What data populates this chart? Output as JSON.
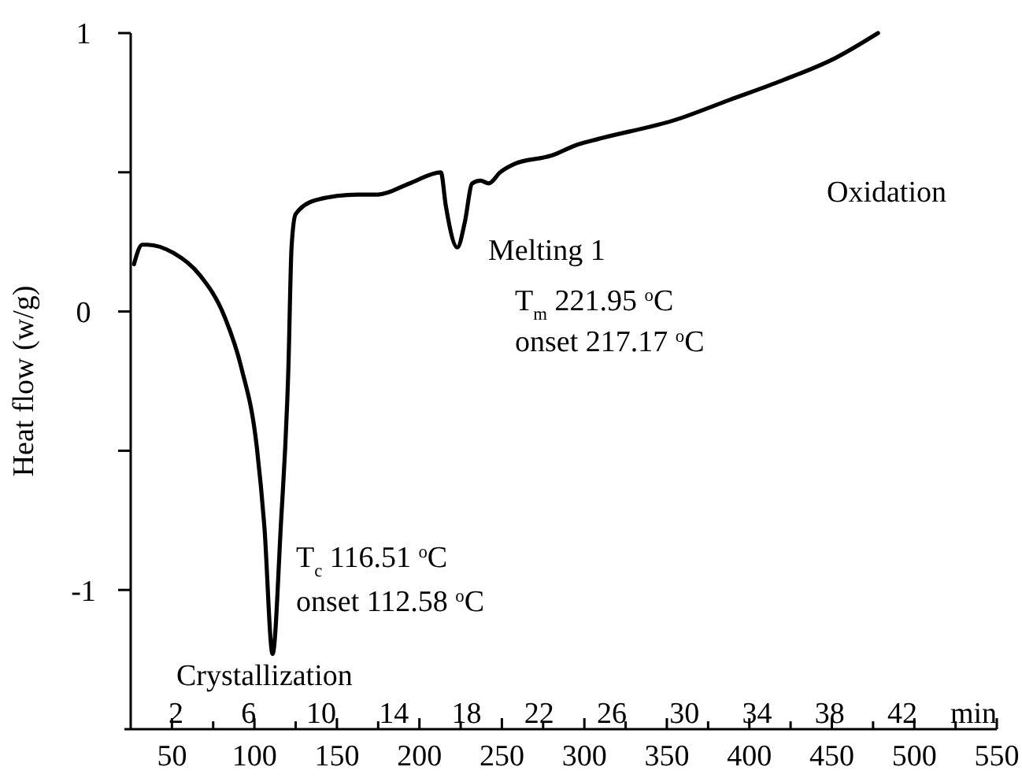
{
  "chart_data": {
    "type": "line",
    "ylabel": "Heat flow (w/g)",
    "x2label": "min",
    "xlim": [
      25,
      550
    ],
    "xticks": [
      50,
      {
        "value": 75,
        "label": null
      },
      100,
      {
        "value": 125,
        "label": null
      },
      150,
      {
        "value": 175,
        "label": null
      },
      200,
      {
        "value": 225,
        "label": null
      },
      250,
      {
        "value": 275,
        "label": null
      },
      300,
      {
        "value": 325,
        "label": null
      },
      350,
      {
        "value": 375,
        "label": null
      },
      400,
      {
        "value": 425,
        "label": null
      },
      450,
      {
        "value": 475,
        "label": null
      },
      500,
      {
        "value": 525,
        "label": null
      },
      550
    ],
    "x2lim": [
      -0.49,
      47.2
    ],
    "x2ticks": [
      2,
      6,
      10,
      14,
      18,
      22,
      26,
      30,
      34,
      38,
      42
    ],
    "ylim": [
      -1.5,
      1
    ],
    "yticks": [
      -1,
      {
        "value": -0.5,
        "label": null
      },
      0,
      {
        "value": 0.5,
        "label": null
      },
      1
    ],
    "grid": false,
    "marker": "none",
    "line_style": "solid",
    "series": [
      {
        "color": "#000000",
        "x": [
          27,
          32,
          35,
          51,
          67,
          82,
          92,
          101.5,
          106,
          111,
          116,
          120.6,
          122.5,
          125,
          137,
          162.6,
          175,
          194,
          213,
          216,
          223,
          227.5,
          232,
          237,
          242,
          249,
          257.7,
          280,
          296,
          308.6,
          356,
          388,
          420,
          452,
          478
        ],
        "values": [
          0.17,
          0.24,
          0.24,
          0.21,
          0.13,
          -0.02,
          -0.2,
          -0.49,
          -0.77,
          -1.23,
          -0.77,
          -0.2,
          0.23,
          0.35,
          0.4,
          0.42,
          0.42,
          0.46,
          0.5,
          0.38,
          0.23,
          0.32,
          0.46,
          0.47,
          0.46,
          0.5,
          0.53,
          0.56,
          0.6,
          0.62,
          0.69,
          0.76,
          0.83,
          0.91,
          1.0
        ]
      }
    ],
    "annotations": [
      "Crystallization",
      "T$_{c}$ 116.51 $^{o}$C",
      "onset 112.58 $^{o}$C",
      "Melting 1",
      "T$_{m}$ 221.95 $^{o}$C",
      "onset 217.17 $^{o}$C",
      "Oxidation"
    ]
  }
}
